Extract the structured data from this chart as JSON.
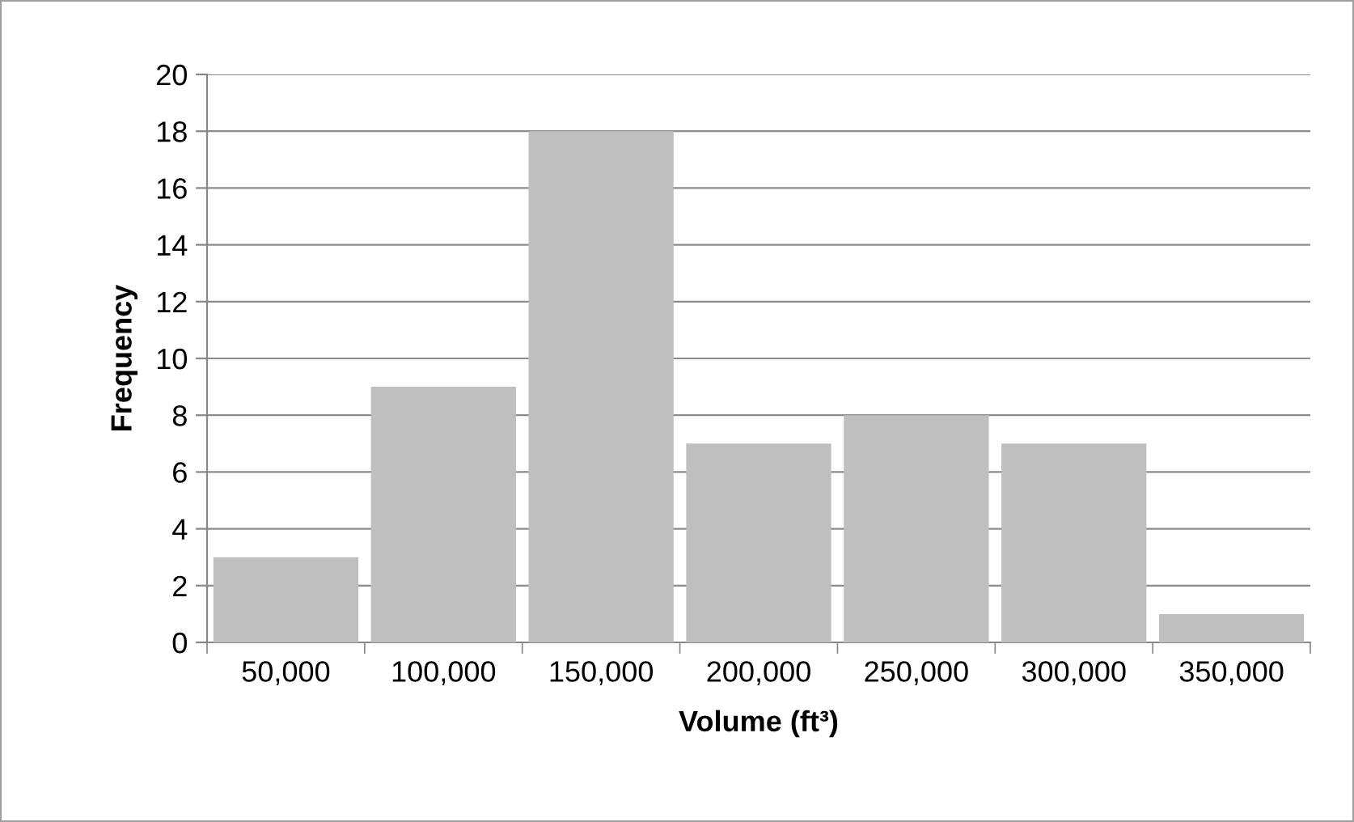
{
  "chart_data": {
    "type": "bar",
    "xlabel": "Volume (ft³)",
    "ylabel": "Frequency",
    "categories": [
      "50,000",
      "100,000",
      "150,000",
      "200,000",
      "250,000",
      "300,000",
      "350,000"
    ],
    "values": [
      3,
      9,
      18,
      7,
      8,
      7,
      1
    ],
    "color": "#bfbfbf",
    "ylim": [
      0,
      20
    ],
    "yticks": [
      0,
      2,
      4,
      6,
      8,
      10,
      12,
      14,
      16,
      18,
      20
    ],
    "grid": "y",
    "legend": false
  }
}
